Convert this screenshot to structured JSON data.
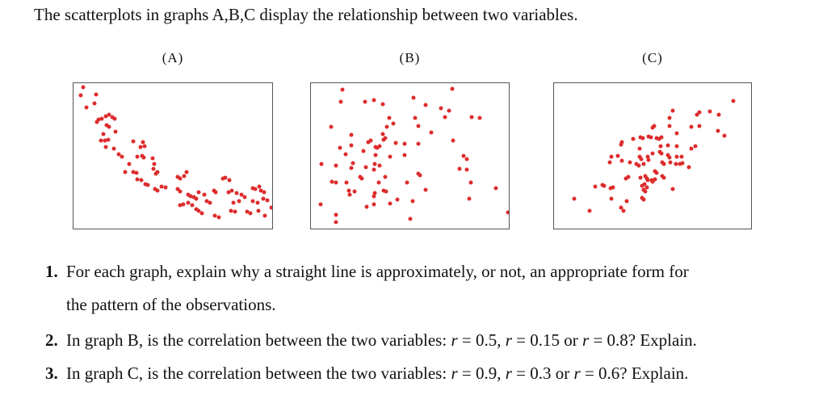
{
  "page": {
    "background": "#ffffff"
  },
  "title": "The scatterplots in graphs A,B,C display the relationship between two variables.",
  "figure": {
    "dot_color": "#dd2c2c",
    "border_color": "#555555",
    "labels": [
      "(A)",
      "(B)",
      "(C)"
    ]
  },
  "questions": [
    {
      "number": "1.",
      "segments": [
        {
          "text": "For each graph, explain why a straight line is approximately, or not, an appropriate form for"
        },
        {
          "break": true
        },
        {
          "text": "the pattern of the observations."
        }
      ]
    },
    {
      "number": "2.",
      "segments": [
        {
          "text": "In graph B, is the correlation between the two variables: "
        },
        {
          "text": "r",
          "italic": true
        },
        {
          "text": " = 0.5, "
        },
        {
          "text": "r",
          "italic": true
        },
        {
          "text": " = 0.15 or "
        },
        {
          "text": "r",
          "italic": true
        },
        {
          "text": " = 0.8? Explain."
        }
      ]
    },
    {
      "number": "3.",
      "segments": [
        {
          "text": "In graph C, is the correlation between the two variables: "
        },
        {
          "text": "r",
          "italic": true
        },
        {
          "text": " = 0.9, "
        },
        {
          "text": "r",
          "italic": true
        },
        {
          "text": " = 0.3 or "
        },
        {
          "text": "r",
          "italic": true
        },
        {
          "text": " = 0.6? Explain."
        }
      ]
    }
  ],
  "chart_data": [
    {
      "type": "scatter",
      "title": "(A)",
      "description": "Strong negative curved (convex, decreasing) association; axes unlabeled, coordinates normalized 0-1 with y up",
      "x_range": [
        0,
        1
      ],
      "y_range": [
        0,
        1
      ],
      "points": [
        [
          0.05,
          0.971
        ],
        [
          0.036,
          0.919
        ],
        [
          0.112,
          0.925
        ],
        [
          0.067,
          0.836
        ],
        [
          0.104,
          0.86
        ],
        [
          0.124,
          0.75
        ],
        [
          0.144,
          0.755
        ],
        [
          0.164,
          0.774
        ],
        [
          0.179,
          0.786
        ],
        [
          0.196,
          0.764
        ],
        [
          0.206,
          0.755
        ],
        [
          0.118,
          0.735
        ],
        [
          0.168,
          0.709
        ],
        [
          0.179,
          0.7
        ],
        [
          0.211,
          0.667
        ],
        [
          0.152,
          0.652
        ],
        [
          0.138,
          0.606
        ],
        [
          0.157,
          0.606
        ],
        [
          0.175,
          0.61
        ],
        [
          0.164,
          0.56
        ],
        [
          0.202,
          0.551
        ],
        [
          0.228,
          0.51
        ],
        [
          0.242,
          0.492
        ],
        [
          0.3,
          0.602
        ],
        [
          0.349,
          0.593
        ],
        [
          0.336,
          0.562
        ],
        [
          0.359,
          0.564
        ],
        [
          0.323,
          0.497
        ],
        [
          0.347,
          0.501
        ],
        [
          0.354,
          0.49
        ],
        [
          0.397,
          0.483
        ],
        [
          0.405,
          0.442
        ],
        [
          0.282,
          0.446
        ],
        [
          0.262,
          0.39
        ],
        [
          0.3,
          0.387
        ],
        [
          0.316,
          0.381
        ],
        [
          0.323,
          0.339
        ],
        [
          0.343,
          0.335
        ],
        [
          0.403,
          0.409
        ],
        [
          0.423,
          0.39
        ],
        [
          0.414,
          0.378
        ],
        [
          0.444,
          0.289
        ],
        [
          0.464,
          0.284
        ],
        [
          0.363,
          0.308
        ],
        [
          0.372,
          0.3
        ],
        [
          0.41,
          0.271
        ],
        [
          0.423,
          0.262
        ],
        [
          0.524,
          0.354
        ],
        [
          0.538,
          0.344
        ],
        [
          0.558,
          0.359
        ],
        [
          0.571,
          0.39
        ],
        [
          0.524,
          0.271
        ],
        [
          0.535,
          0.256
        ],
        [
          0.578,
          0.234
        ],
        [
          0.591,
          0.225
        ],
        [
          0.605,
          0.216
        ],
        [
          0.618,
          0.206
        ],
        [
          0.632,
          0.252
        ],
        [
          0.659,
          0.234
        ],
        [
          0.538,
          0.16
        ],
        [
          0.551,
          0.164
        ],
        [
          0.578,
          0.179
        ],
        [
          0.598,
          0.16
        ],
        [
          0.616,
          0.133
        ],
        [
          0.632,
          0.123
        ],
        [
          0.645,
          0.105
        ],
        [
          0.672,
          0.188
        ],
        [
          0.685,
          0.179
        ],
        [
          0.706,
          0.262
        ],
        [
          0.715,
          0.252
        ],
        [
          0.753,
          0.344
        ],
        [
          0.766,
          0.348
        ],
        [
          0.786,
          0.335
        ],
        [
          0.78,
          0.252
        ],
        [
          0.796,
          0.262
        ],
        [
          0.82,
          0.243
        ],
        [
          0.806,
          0.179
        ],
        [
          0.833,
          0.188
        ],
        [
          0.847,
          0.234
        ],
        [
          0.863,
          0.219
        ],
        [
          0.901,
          0.28
        ],
        [
          0.914,
          0.271
        ],
        [
          0.934,
          0.289
        ],
        [
          0.944,
          0.262
        ],
        [
          0.961,
          0.252
        ],
        [
          0.901,
          0.188
        ],
        [
          0.927,
          0.179
        ],
        [
          0.957,
          0.206
        ],
        [
          0.977,
          0.197
        ],
        [
          0.712,
          0.087
        ],
        [
          0.733,
          0.077
        ],
        [
          0.793,
          0.123
        ],
        [
          0.813,
          0.114
        ],
        [
          0.874,
          0.114
        ],
        [
          0.89,
          0.105
        ],
        [
          0.93,
          0.123
        ],
        [
          0.965,
          0.087
        ],
        [
          0.995,
          0.142
        ]
      ]
    },
    {
      "type": "scatter",
      "title": "(B)",
      "description": "Weak, diffuse scatter with little linear trend; axes unlabeled, coordinates normalized 0-1 with y up",
      "x_range": [
        0,
        1
      ],
      "y_range": [
        0,
        1
      ],
      "points": [
        [
          0.159,
          0.956
        ],
        [
          0.713,
          0.962
        ],
        [
          0.152,
          0.871
        ],
        [
          0.274,
          0.871
        ],
        [
          0.318,
          0.883
        ],
        [
          0.362,
          0.856
        ],
        [
          0.517,
          0.898
        ],
        [
          0.578,
          0.852
        ],
        [
          0.659,
          0.829
        ],
        [
          0.699,
          0.811
        ],
        [
          0.676,
          0.767
        ],
        [
          0.814,
          0.767
        ],
        [
          0.854,
          0.761
        ],
        [
          0.395,
          0.761
        ],
        [
          0.416,
          0.725
        ],
        [
          0.528,
          0.761
        ],
        [
          0.544,
          0.707
        ],
        [
          0.101,
          0.701
        ],
        [
          0.382,
          0.698
        ],
        [
          0.362,
          0.652
        ],
        [
          0.375,
          0.625
        ],
        [
          0.204,
          0.647
        ],
        [
          0.609,
          0.661
        ],
        [
          0.368,
          0.61
        ],
        [
          0.429,
          0.588
        ],
        [
          0.291,
          0.597
        ],
        [
          0.304,
          0.607
        ],
        [
          0.146,
          0.556
        ],
        [
          0.206,
          0.57
        ],
        [
          0.177,
          0.51
        ],
        [
          0.267,
          0.534
        ],
        [
          0.325,
          0.561
        ],
        [
          0.335,
          0.556
        ],
        [
          0.345,
          0.567
        ],
        [
          0.719,
          0.607
        ],
        [
          0.474,
          0.585
        ],
        [
          0.541,
          0.585
        ],
        [
          0.398,
          0.497
        ],
        [
          0.325,
          0.506
        ],
        [
          0.474,
          0.503
        ],
        [
          0.771,
          0.501
        ],
        [
          0.789,
          0.479
        ],
        [
          0.055,
          0.443
        ],
        [
          0.126,
          0.433
        ],
        [
          0.213,
          0.452
        ],
        [
          0.204,
          0.419
        ],
        [
          0.277,
          0.424
        ],
        [
          0.321,
          0.443
        ],
        [
          0.317,
          0.406
        ],
        [
          0.345,
          0.433
        ],
        [
          0.75,
          0.41
        ],
        [
          0.789,
          0.403
        ],
        [
          0.105,
          0.324
        ],
        [
          0.128,
          0.319
        ],
        [
          0.179,
          0.315
        ],
        [
          0.25,
          0.355
        ],
        [
          0.258,
          0.342
        ],
        [
          0.341,
          0.319
        ],
        [
          0.375,
          0.355
        ],
        [
          0.544,
          0.379
        ],
        [
          0.553,
          0.366
        ],
        [
          0.487,
          0.319
        ],
        [
          0.807,
          0.319
        ],
        [
          0.933,
          0.279
        ],
        [
          0.19,
          0.26
        ],
        [
          0.196,
          0.233
        ],
        [
          0.22,
          0.257
        ],
        [
          0.321,
          0.246
        ],
        [
          0.368,
          0.26
        ],
        [
          0.378,
          0.257
        ],
        [
          0.317,
          0.224
        ],
        [
          0.436,
          0.202
        ],
        [
          0.514,
          0.191
        ],
        [
          0.578,
          0.264
        ],
        [
          0.8,
          0.206
        ],
        [
          0.047,
          0.164
        ],
        [
          0.281,
          0.151
        ],
        [
          0.317,
          0.169
        ],
        [
          0.402,
          0.173
        ],
        [
          0.126,
          0.097
        ],
        [
          0.128,
          0.046
        ],
        [
          0.503,
          0.069
        ],
        [
          0.995,
          0.111
        ]
      ]
    },
    {
      "type": "scatter",
      "title": "(C)",
      "description": "Moderate positive linear association; axes unlabeled, coordinates normalized 0-1 with y up",
      "x_range": [
        0,
        1
      ],
      "y_range": [
        0,
        1
      ],
      "points": [
        [
          0.908,
          0.88
        ],
        [
          0.789,
          0.807
        ],
        [
          0.837,
          0.783
        ],
        [
          0.738,
          0.798
        ],
        [
          0.726,
          0.783
        ],
        [
          0.603,
          0.811
        ],
        [
          0.587,
          0.761
        ],
        [
          0.587,
          0.707
        ],
        [
          0.698,
          0.698
        ],
        [
          0.738,
          0.707
        ],
        [
          0.508,
          0.707
        ],
        [
          0.499,
          0.692
        ],
        [
          0.621,
          0.658
        ],
        [
          0.833,
          0.67
        ],
        [
          0.865,
          0.639
        ],
        [
          0.4,
          0.616
        ],
        [
          0.44,
          0.628
        ],
        [
          0.45,
          0.621
        ],
        [
          0.481,
          0.634
        ],
        [
          0.491,
          0.628
        ],
        [
          0.522,
          0.625
        ],
        [
          0.531,
          0.616
        ],
        [
          0.545,
          0.628
        ],
        [
          0.346,
          0.597
        ],
        [
          0.341,
          0.579
        ],
        [
          0.434,
          0.552
        ],
        [
          0.542,
          0.566
        ],
        [
          0.576,
          0.574
        ],
        [
          0.623,
          0.566
        ],
        [
          0.698,
          0.548
        ],
        [
          0.718,
          0.566
        ],
        [
          0.291,
          0.497
        ],
        [
          0.325,
          0.501
        ],
        [
          0.346,
          0.464
        ],
        [
          0.386,
          0.457
        ],
        [
          0.436,
          0.497
        ],
        [
          0.443,
          0.479
        ],
        [
          0.474,
          0.494
        ],
        [
          0.481,
          0.475
        ],
        [
          0.499,
          0.519
        ],
        [
          0.535,
          0.53
        ],
        [
          0.545,
          0.515
        ],
        [
          0.576,
          0.506
        ],
        [
          0.585,
          0.488
        ],
        [
          0.621,
          0.494
        ],
        [
          0.648,
          0.494
        ],
        [
          0.42,
          0.443
        ],
        [
          0.43,
          0.434
        ],
        [
          0.454,
          0.443
        ],
        [
          0.282,
          0.457
        ],
        [
          0.549,
          0.457
        ],
        [
          0.558,
          0.446
        ],
        [
          0.589,
          0.457
        ],
        [
          0.617,
          0.443
        ],
        [
          0.64,
          0.443
        ],
        [
          0.65,
          0.452
        ],
        [
          0.684,
          0.424
        ],
        [
          0.512,
          0.392
        ],
        [
          0.52,
          0.384
        ],
        [
          0.366,
          0.342
        ],
        [
          0.379,
          0.355
        ],
        [
          0.44,
          0.348
        ],
        [
          0.463,
          0.361
        ],
        [
          0.47,
          0.346
        ],
        [
          0.477,
          0.333
        ],
        [
          0.495,
          0.333
        ],
        [
          0.501,
          0.324
        ],
        [
          0.511,
          0.337
        ],
        [
          0.549,
          0.361
        ],
        [
          0.558,
          0.352
        ],
        [
          0.447,
          0.297
        ],
        [
          0.461,
          0.306
        ],
        [
          0.21,
          0.288
        ],
        [
          0.244,
          0.301
        ],
        [
          0.253,
          0.293
        ],
        [
          0.285,
          0.279
        ],
        [
          0.301,
          0.282
        ],
        [
          0.454,
          0.264
        ],
        [
          0.463,
          0.257
        ],
        [
          0.47,
          0.282
        ],
        [
          0.603,
          0.27
        ],
        [
          0.291,
          0.206
        ],
        [
          0.102,
          0.206
        ],
        [
          0.18,
          0.124
        ],
        [
          0.339,
          0.142
        ],
        [
          0.352,
          0.124
        ],
        [
          0.369,
          0.191
        ],
        [
          0.447,
          0.209
        ],
        [
          0.454,
          0.202
        ]
      ]
    }
  ]
}
